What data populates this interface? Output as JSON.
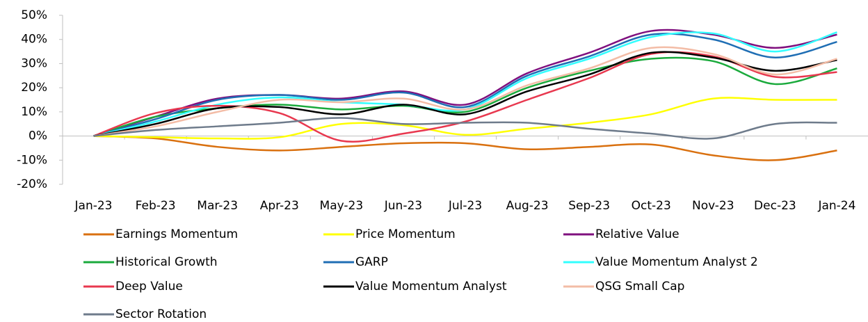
{
  "chart_data": {
    "type": "line",
    "categories": [
      "Jan-23",
      "Feb-23",
      "Mar-23",
      "Apr-23",
      "May-23",
      "Jun-23",
      "Jul-23",
      "Aug-23",
      "Sep-23",
      "Oct-23",
      "Nov-23",
      "Dec-23",
      "Jan-24"
    ],
    "ylim": [
      -20,
      50
    ],
    "yticks": [
      {
        "value": -20,
        "label": "-20%"
      },
      {
        "value": -10,
        "label": "-10%"
      },
      {
        "value": 0,
        "label": "0%"
      },
      {
        "value": 10,
        "label": "10%"
      },
      {
        "value": 20,
        "label": "20%"
      },
      {
        "value": 30,
        "label": "30%"
      },
      {
        "value": 40,
        "label": "40%"
      },
      {
        "value": 50,
        "label": "50%"
      }
    ],
    "grid": false,
    "legend": "bottom",
    "series": [
      {
        "name": "Earnings Momentum",
        "color": "#d9700f",
        "values": [
          0,
          -1,
          -4.5,
          -6,
          -4.5,
          -3,
          -3,
          -5.5,
          -4.5,
          -3.5,
          -8,
          -10,
          -6
        ]
      },
      {
        "name": "Price Momentum",
        "color": "#ffff00",
        "values": [
          0,
          -0.5,
          -1,
          -0.5,
          5,
          4.5,
          0.5,
          3,
          5.5,
          9,
          15.5,
          15,
          15
        ]
      },
      {
        "name": "Relative Value",
        "color": "#7f0f7e",
        "values": [
          0,
          8,
          15.5,
          17,
          15.5,
          18.5,
          13,
          26,
          34.5,
          43.5,
          42,
          36.5,
          42
        ]
      },
      {
        "name": "Historical Growth",
        "color": "#1aaa3c",
        "values": [
          0,
          8,
          11.5,
          13,
          11,
          12.5,
          10,
          20,
          27,
          32,
          31,
          21.5,
          28
        ]
      },
      {
        "name": "GARP",
        "color": "#1f6eb4",
        "values": [
          0,
          7,
          15,
          17,
          15,
          18,
          12,
          25,
          33,
          42,
          40,
          32.5,
          39
        ]
      },
      {
        "name": "Value Momentum Analyst 2",
        "color": "#33ffff",
        "values": [
          0,
          6,
          13,
          16,
          14,
          13,
          11,
          24,
          32,
          41,
          42.5,
          35,
          43
        ]
      },
      {
        "name": "Deep Value",
        "color": "#e8384f",
        "values": [
          0,
          9.5,
          12.5,
          9.5,
          -2,
          1,
          6,
          15,
          24,
          34,
          33,
          24.5,
          26.5
        ]
      },
      {
        "name": "Value Momentum Analyst",
        "color": "#000000",
        "values": [
          0,
          5,
          11.5,
          12,
          9,
          13,
          9,
          18.5,
          25.5,
          34.5,
          32.5,
          27,
          31.5
        ]
      },
      {
        "name": "QSG Small Cap",
        "color": "#f3bca6",
        "values": [
          0,
          4,
          10,
          15,
          14,
          15.5,
          11,
          21,
          28,
          36.5,
          34,
          25.5,
          32
        ]
      },
      {
        "name": "Sector Rotation",
        "color": "#6e7b8b",
        "values": [
          0,
          2.5,
          4,
          5.5,
          7.5,
          5,
          5.5,
          5.5,
          3,
          1,
          -1,
          5,
          5.5
        ]
      }
    ]
  }
}
